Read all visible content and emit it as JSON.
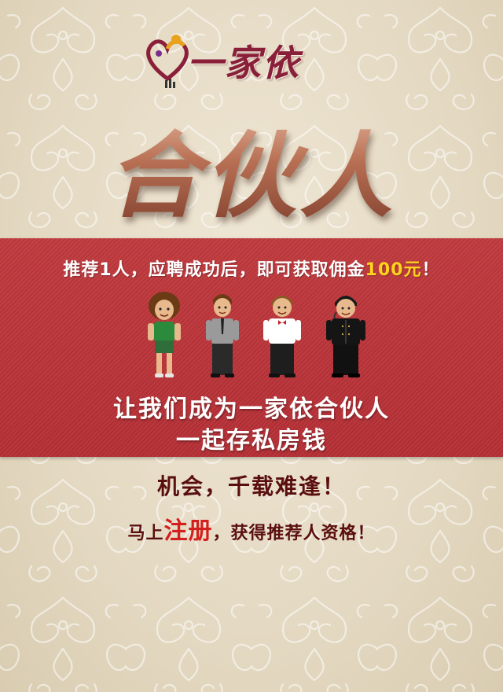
{
  "logo": {
    "text": "一家依",
    "alt_icon": "family-heart-logo-icon"
  },
  "hero": {
    "title": "合伙人"
  },
  "band": {
    "headline_prefix": "推荐1人，应聘成功后，即可获取佣金",
    "headline_amount": "100元",
    "headline_suffix": "！",
    "people_icons": [
      "curly-hair-person-icon",
      "shirt-tie-person-icon",
      "waiter-person-icon",
      "chef-person-icon"
    ],
    "line1": "让我们成为一家依合伙人",
    "line2": "一起存私房钱"
  },
  "footer": {
    "chance": "机会，千载难逢！",
    "cta_prefix": "马上",
    "cta_register": "注册",
    "cta_suffix": "，获得推荐人资格！"
  },
  "colors": {
    "band_red": "#b42f35",
    "amount_yellow": "#ffd21f",
    "text_dark_red": "#5a0f0f",
    "register_red": "#d41f1f",
    "background_beige": "#e6dcc7"
  }
}
